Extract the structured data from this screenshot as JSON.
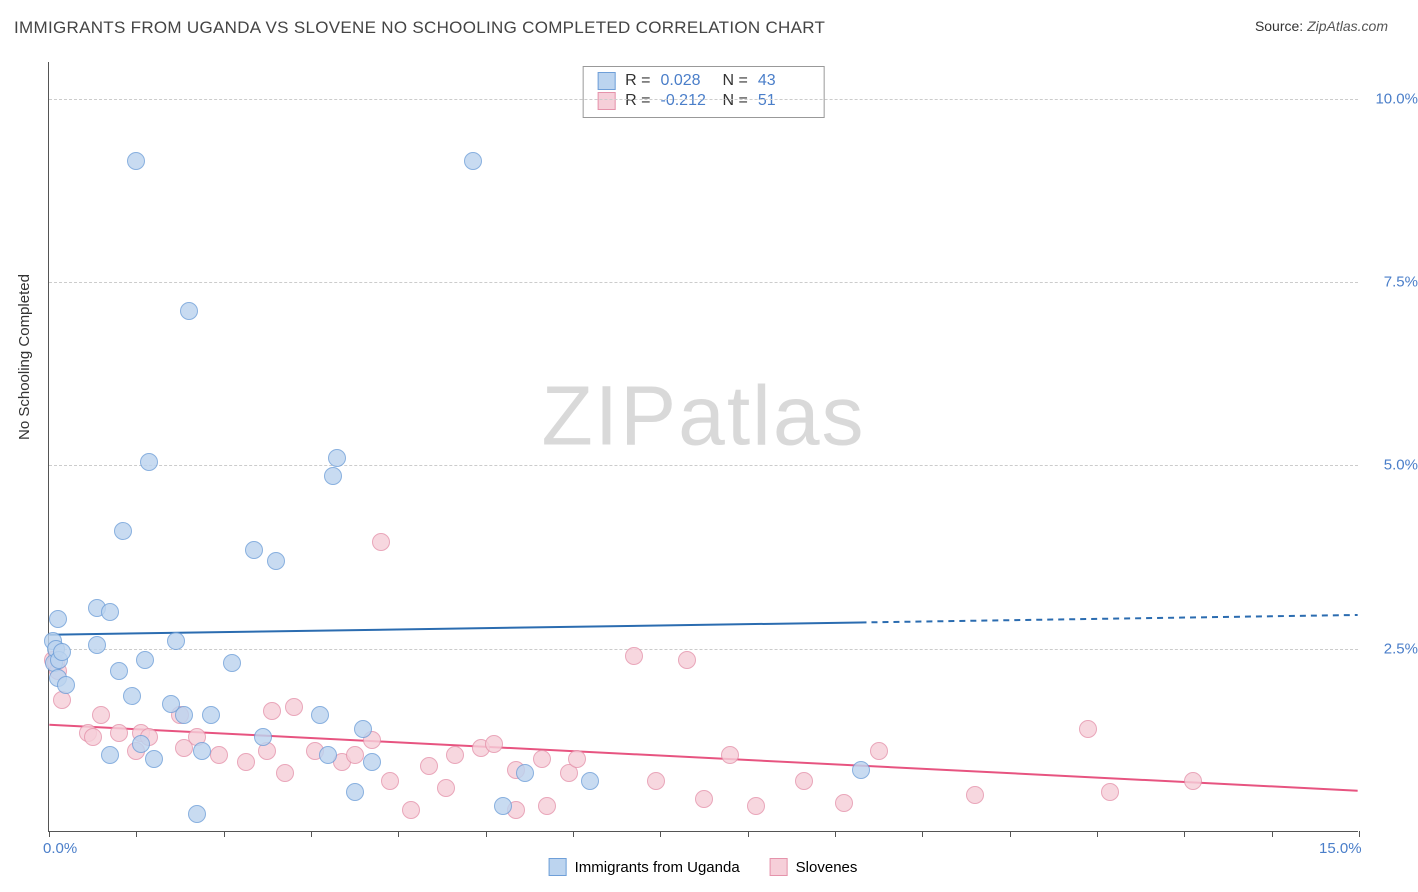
{
  "title": "IMMIGRANTS FROM UGANDA VS SLOVENE NO SCHOOLING COMPLETED CORRELATION CHART",
  "source_label": "Source:",
  "source_value": "ZipAtlas.com",
  "y_axis_title": "No Schooling Completed",
  "watermark_zip": "ZIP",
  "watermark_atlas": "atlas",
  "chart": {
    "type": "scatter",
    "xlim": [
      0,
      15
    ],
    "ylim": [
      0,
      10.5
    ],
    "y_ticks": [
      2.5,
      5.0,
      7.5,
      10.0
    ],
    "y_tick_labels": [
      "2.5%",
      "5.0%",
      "7.5%",
      "10.0%"
    ],
    "x_ticks": [
      0,
      1,
      2,
      3,
      4,
      5,
      6,
      7,
      8,
      9,
      10,
      11,
      12,
      13,
      14,
      15
    ],
    "x_tick_labels_shown": {
      "0": "0.0%",
      "15": "15.0%"
    },
    "grid_color": "#cccccc",
    "background": "#ffffff",
    "point_radius": 9,
    "series": {
      "uganda": {
        "label": "Immigrants from Uganda",
        "fill": "#bcd4ef",
        "stroke": "#6f9fd8",
        "stroke_opacity": 0.85,
        "trend_color": "#2b6cb0",
        "trend_y_at_x0": 2.68,
        "trend_y_at_xmax": 2.95,
        "trend_solid_until_x": 9.3,
        "R": "0.028",
        "N": "43",
        "points": [
          [
            0.05,
            2.6
          ],
          [
            0.06,
            2.3
          ],
          [
            0.08,
            2.5
          ],
          [
            0.1,
            2.1
          ],
          [
            0.1,
            2.9
          ],
          [
            0.12,
            2.35
          ],
          [
            0.15,
            2.45
          ],
          [
            0.2,
            2.0
          ],
          [
            0.55,
            3.05
          ],
          [
            0.55,
            2.55
          ],
          [
            0.7,
            3.0
          ],
          [
            0.7,
            1.05
          ],
          [
            0.8,
            2.2
          ],
          [
            0.85,
            4.1
          ],
          [
            0.95,
            1.85
          ],
          [
            1.0,
            9.15
          ],
          [
            1.05,
            1.2
          ],
          [
            1.1,
            2.35
          ],
          [
            1.15,
            5.05
          ],
          [
            1.2,
            1.0
          ],
          [
            1.4,
            1.75
          ],
          [
            1.45,
            2.6
          ],
          [
            1.55,
            1.6
          ],
          [
            1.6,
            7.1
          ],
          [
            1.7,
            0.25
          ],
          [
            1.75,
            1.1
          ],
          [
            1.85,
            1.6
          ],
          [
            2.1,
            2.3
          ],
          [
            2.35,
            3.85
          ],
          [
            2.45,
            1.3
          ],
          [
            2.6,
            3.7
          ],
          [
            3.1,
            1.6
          ],
          [
            3.2,
            1.05
          ],
          [
            3.25,
            4.85
          ],
          [
            3.3,
            5.1
          ],
          [
            3.5,
            0.55
          ],
          [
            3.6,
            1.4
          ],
          [
            3.7,
            0.95
          ],
          [
            4.85,
            9.15
          ],
          [
            5.2,
            0.35
          ],
          [
            5.45,
            0.8
          ],
          [
            6.2,
            0.7
          ],
          [
            9.3,
            0.85
          ]
        ]
      },
      "slovene": {
        "label": "Slovenes",
        "fill": "#f6cfd9",
        "stroke": "#e593ab",
        "stroke_opacity": 0.85,
        "trend_color": "#e75480",
        "trend_y_at_x0": 1.45,
        "trend_y_at_xmax": 0.55,
        "R": "-0.212",
        "N": "51",
        "points": [
          [
            0.05,
            2.35
          ],
          [
            0.08,
            2.3
          ],
          [
            0.1,
            2.2
          ],
          [
            0.15,
            1.8
          ],
          [
            0.45,
            1.35
          ],
          [
            0.5,
            1.3
          ],
          [
            0.6,
            1.6
          ],
          [
            0.8,
            1.35
          ],
          [
            1.0,
            1.1
          ],
          [
            1.05,
            1.35
          ],
          [
            1.15,
            1.3
          ],
          [
            1.5,
            1.6
          ],
          [
            1.55,
            1.15
          ],
          [
            1.7,
            1.3
          ],
          [
            1.95,
            1.05
          ],
          [
            2.25,
            0.95
          ],
          [
            2.5,
            1.1
          ],
          [
            2.55,
            1.65
          ],
          [
            2.7,
            0.8
          ],
          [
            2.8,
            1.7
          ],
          [
            3.05,
            1.1
          ],
          [
            3.35,
            0.95
          ],
          [
            3.5,
            1.05
          ],
          [
            3.7,
            1.25
          ],
          [
            3.8,
            3.95
          ],
          [
            3.9,
            0.7
          ],
          [
            4.15,
            0.3
          ],
          [
            4.35,
            0.9
          ],
          [
            4.55,
            0.6
          ],
          [
            4.65,
            1.05
          ],
          [
            4.95,
            1.15
          ],
          [
            5.1,
            1.2
          ],
          [
            5.35,
            0.3
          ],
          [
            5.35,
            0.85
          ],
          [
            5.65,
            1.0
          ],
          [
            5.7,
            0.35
          ],
          [
            5.95,
            0.8
          ],
          [
            6.05,
            1.0
          ],
          [
            6.7,
            2.4
          ],
          [
            6.95,
            0.7
          ],
          [
            7.3,
            2.35
          ],
          [
            7.5,
            0.45
          ],
          [
            7.8,
            1.05
          ],
          [
            8.1,
            0.35
          ],
          [
            8.65,
            0.7
          ],
          [
            9.1,
            0.4
          ],
          [
            9.5,
            1.1
          ],
          [
            10.6,
            0.5
          ],
          [
            11.9,
            1.4
          ],
          [
            12.15,
            0.55
          ],
          [
            13.1,
            0.7
          ]
        ]
      }
    }
  },
  "stats_box": {
    "rows": [
      {
        "swatch": "uganda",
        "R_label": "R =",
        "R": "0.028",
        "N_label": "N =",
        "N": "43"
      },
      {
        "swatch": "slovene",
        "R_label": "R =",
        "R": "-0.212",
        "N_label": "N =",
        "N": "51"
      }
    ]
  },
  "legend": {
    "items": [
      {
        "swatch": "uganda",
        "label": "Immigrants from Uganda"
      },
      {
        "swatch": "slovene",
        "label": "Slovenes"
      }
    ]
  }
}
